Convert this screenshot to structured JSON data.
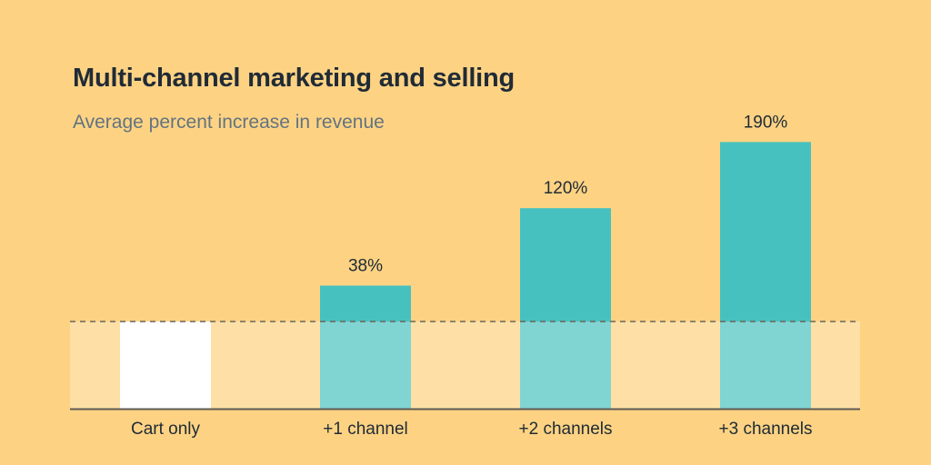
{
  "chart_data": {
    "type": "bar",
    "title": "Multi-channel marketing and selling",
    "subtitle": "Average percent increase in revenue",
    "categories": [
      "Cart only",
      "+1 channel",
      "+2 channels",
      "+3 channels"
    ],
    "values": [
      0,
      38,
      120,
      190
    ],
    "data_labels": [
      "",
      "38%",
      "120%",
      "190%"
    ],
    "unit": "%",
    "baseline_reference": "dashed line at cart-only level",
    "grid": false,
    "legend": "none",
    "colors": {
      "background": "#FDD383",
      "baseline_band": "#FEE0A6",
      "baseline_bar": "#FFFFFF",
      "increase": "#47C1BF",
      "increase_in_band": "#80D4D2",
      "title": "#212B36",
      "subtitle": "#637381"
    }
  }
}
